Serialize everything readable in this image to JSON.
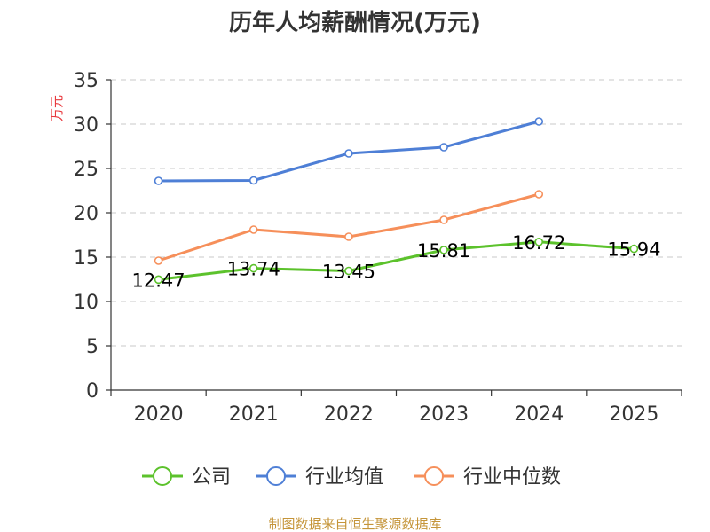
{
  "chart_data": {
    "type": "line",
    "title": "历年人均薪酬情况(万元)",
    "ylabel": "万元",
    "xlabel": "",
    "ylim": [
      0,
      35
    ],
    "yticks": [
      0,
      5,
      10,
      15,
      20,
      25,
      30,
      35
    ],
    "categories": [
      "2020",
      "2021",
      "2022",
      "2023",
      "2024",
      "2025"
    ],
    "grid": true,
    "legend_position": "bottom",
    "series": [
      {
        "name": "公司",
        "color": "#5cc22c",
        "values": [
          12.47,
          13.74,
          13.45,
          15.81,
          16.72,
          15.94
        ],
        "labels": [
          "12.47",
          "13.74",
          "13.45",
          "15.81",
          "16.72",
          "15.94"
        ]
      },
      {
        "name": "行业均值",
        "color": "#4e7fd6",
        "values": [
          23.6,
          23.65,
          26.7,
          27.4,
          30.3,
          null
        ]
      },
      {
        "name": "行业中位数",
        "color": "#f68f5a",
        "values": [
          14.6,
          18.1,
          17.3,
          19.2,
          22.1,
          null
        ]
      }
    ],
    "source": "制图数据来自恒生聚源数据库"
  }
}
